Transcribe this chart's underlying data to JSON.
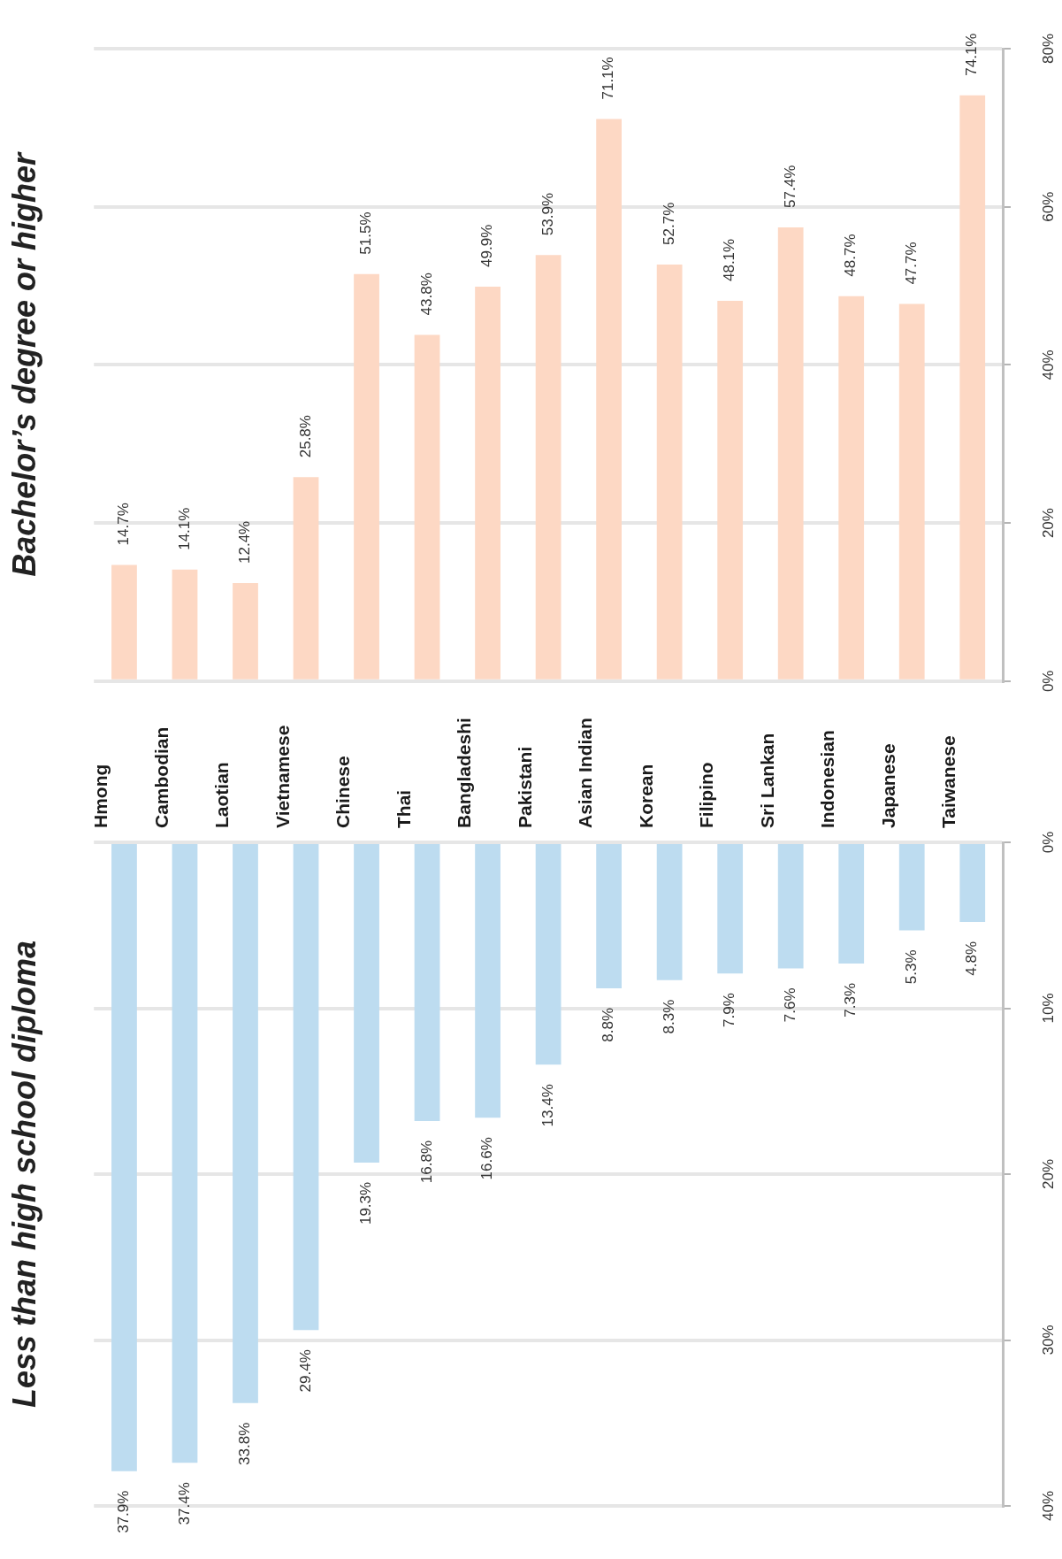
{
  "chart_data": [
    {
      "type": "bar",
      "title": "Bachelor’s degree or higher",
      "categories": [
        null,
        null,
        null,
        null,
        null,
        null,
        null,
        null,
        null,
        null,
        null,
        null,
        null,
        null,
        null
      ],
      "values": [
        14.7,
        14.1,
        12.4,
        25.8,
        51.5,
        43.8,
        49.9,
        53.9,
        71.1,
        52.7,
        48.1,
        57.4,
        48.7,
        47.7,
        74.1
      ],
      "color": "#fdd8c4",
      "value_labels": [
        "14.7%",
        "14.1%",
        "12.4%",
        "25.8%",
        "51.5%",
        "43.8%",
        "49.9%",
        "53.9%",
        "71.1%",
        "52.7%",
        "48.1%",
        "57.4%",
        "48.7%",
        "47.7%",
        "74.1%"
      ],
      "ylim": [
        0,
        80
      ],
      "yticks": [
        {
          "value": 0,
          "label": "0%"
        },
        {
          "value": 20,
          "label": "20%"
        },
        {
          "value": 40,
          "label": "40%"
        },
        {
          "value": 60,
          "label": "60%"
        },
        {
          "value": 80,
          "label": "80%"
        }
      ],
      "grid": "y",
      "tick_labels": "y"
    },
    {
      "type": "bar",
      "title": "Less than high school diploma",
      "categories": [
        "Hmong",
        "Cambodian",
        "Laotian",
        "Vietnamese",
        "Chinese",
        "Thai",
        "Bangladeshi",
        "Pakistani",
        "Asian Indian",
        "Korean",
        "Filipino",
        "Sri Lankan",
        "Indonesian",
        "Japanese",
        "Taiwanese"
      ],
      "values": [
        37.9,
        37.4,
        33.8,
        29.4,
        19.3,
        16.8,
        16.6,
        13.4,
        8.8,
        8.3,
        7.9,
        7.6,
        7.3,
        5.3,
        4.8
      ],
      "color": "#bddcf0",
      "value_labels": [
        "37.9%",
        "37.4%",
        "33.8%",
        "29.4%",
        "19.3%",
        "16.8%",
        "16.6%",
        "13.4%",
        "8.8%",
        "8.3%",
        "7.9%",
        "7.6%",
        "7.3%",
        "5.3%",
        "4.8%"
      ],
      "ylim": [
        40,
        0
      ],
      "yticks": [
        {
          "value": 0,
          "label": "0%"
        },
        {
          "value": 10,
          "label": "10%"
        },
        {
          "value": 20,
          "label": "20%"
        },
        {
          "value": 30,
          "label": "30%"
        },
        {
          "value": 40,
          "label": "40%"
        }
      ],
      "grid": "y"
    }
  ]
}
